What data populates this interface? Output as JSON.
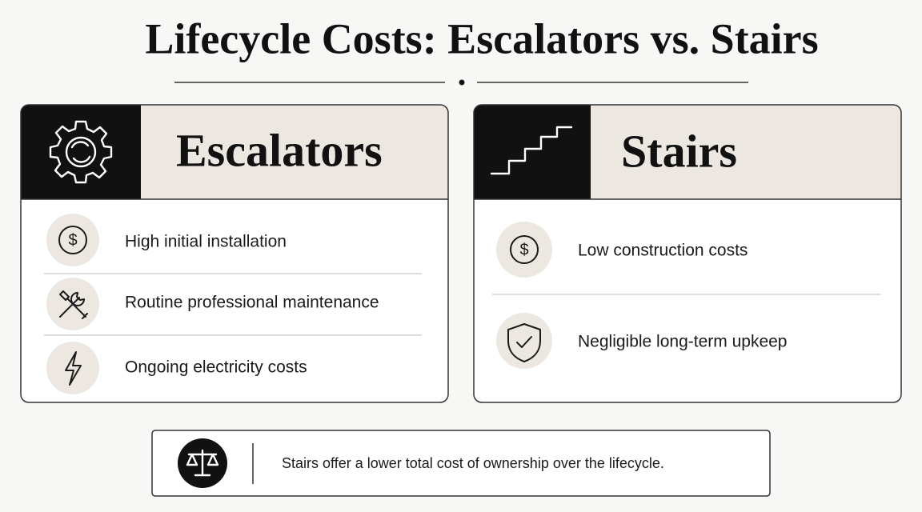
{
  "header": {
    "title": "Lifecycle Costs: Escalators vs. Stairs"
  },
  "cards": [
    {
      "title": "Escalators",
      "items": [
        "High initial installation",
        "Routine professional maintenance",
        "Ongoing electricity costs"
      ]
    },
    {
      "title": "Stairs",
      "items": [
        "Low construction costs",
        "Negligible long-term upkeep"
      ]
    }
  ],
  "footer": {
    "text": "Stairs offer a lower total cost of ownership over the lifecycle."
  }
}
